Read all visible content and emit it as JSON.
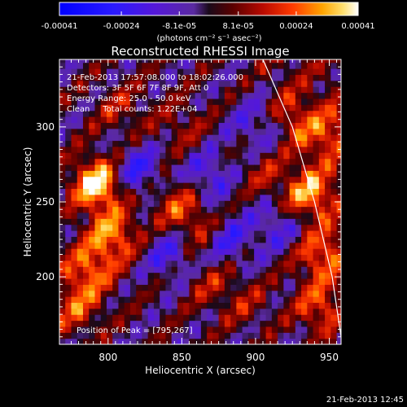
{
  "colorbar": {
    "tick_labels": [
      "-0.00041",
      "-0.00024",
      "-8.1e-05",
      "8.1e-05",
      "0.00024",
      "0.00041"
    ],
    "unit_label": "(photons cm⁻² s⁻¹ asec⁻²)",
    "range": [
      -0.00041,
      0.00041
    ]
  },
  "chart_data": {
    "type": "heatmap",
    "title": "Reconstructed RHESSI Image",
    "xlabel": "Heliocentric X (arcsec)",
    "ylabel": "Heliocentric Y (arcsec)",
    "xlim": [
      767,
      958
    ],
    "ylim": [
      155,
      345
    ],
    "x_ticks": [
      800,
      850,
      900,
      950
    ],
    "y_ticks": [
      200,
      250,
      300
    ],
    "annotations": [
      "21-Feb-2013 17:57:08.000 to 18:02:26.000",
      "Detectors: 3F 5F 6F 7F 8F 9F, Att 0",
      "Energy Range: 25.0 - 50.0 keV",
      "Clean     Total counts: 1.22E+04"
    ],
    "peak_label": "Position of Peak = [795,267]",
    "peak": [
      795,
      267
    ],
    "limb_curve_points": [
      [
        905,
        345
      ],
      [
        925,
        300
      ],
      [
        940,
        250
      ],
      [
        952,
        200
      ],
      [
        958,
        160
      ]
    ],
    "hot_spots": [
      {
        "x": 793,
        "y": 262,
        "v": 0.00041
      },
      {
        "x": 803,
        "y": 228,
        "v": 0.00028
      },
      {
        "x": 787,
        "y": 205,
        "v": 0.00024
      },
      {
        "x": 778,
        "y": 180,
        "v": 0.0002
      },
      {
        "x": 845,
        "y": 250,
        "v": 0.00018
      },
      {
        "x": 862,
        "y": 232,
        "v": 0.00017
      },
      {
        "x": 868,
        "y": 198,
        "v": 0.00012
      },
      {
        "x": 893,
        "y": 182,
        "v": 0.0001
      },
      {
        "x": 808,
        "y": 312,
        "v": 0.00012
      },
      {
        "x": 850,
        "y": 300,
        "v": 0.0001
      },
      {
        "x": 935,
        "y": 255,
        "v": 0.0003
      },
      {
        "x": 945,
        "y": 215,
        "v": 0.00026
      },
      {
        "x": 944,
        "y": 180,
        "v": 0.00022
      },
      {
        "x": 925,
        "y": 305,
        "v": 0.00014
      },
      {
        "x": 950,
        "y": 295,
        "v": 0.00018
      },
      {
        "x": 905,
        "y": 270,
        "v": 0.00011
      }
    ],
    "cold_spots": [
      {
        "x": 820,
        "y": 270,
        "v": -0.00022
      },
      {
        "x": 843,
        "y": 215,
        "v": -0.00018
      },
      {
        "x": 868,
        "y": 268,
        "v": -0.00018
      },
      {
        "x": 880,
        "y": 225,
        "v": -0.0002
      },
      {
        "x": 915,
        "y": 235,
        "v": -0.00016
      },
      {
        "x": 900,
        "y": 300,
        "v": -0.00015
      }
    ],
    "grid": false
  },
  "footer": {
    "timestamp": "21-Feb-2013 12:45"
  }
}
